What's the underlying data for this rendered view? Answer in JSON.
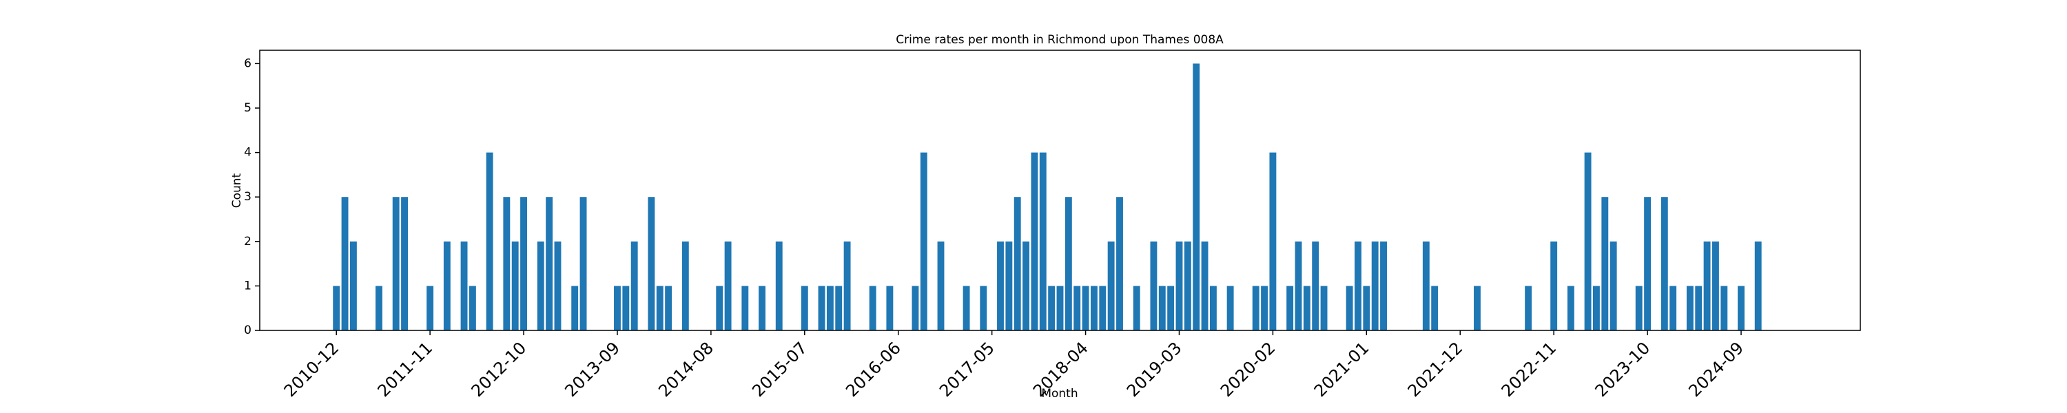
{
  "chart_data": {
    "type": "bar",
    "title": "Crime rates per month in Richmond upon Thames 008A",
    "xlabel": "Month",
    "ylabel": "Count",
    "color": "#1f77b4",
    "x": [
      "2010-12",
      "2011-01",
      "2011-02",
      "2011-05",
      "2011-07",
      "2011-08",
      "2011-11",
      "2012-01",
      "2012-03",
      "2012-04",
      "2012-06",
      "2012-08",
      "2012-09",
      "2012-10",
      "2012-12",
      "2013-01",
      "2013-02",
      "2013-04",
      "2013-05",
      "2013-09",
      "2013-10",
      "2013-11",
      "2014-01",
      "2014-02",
      "2014-03",
      "2014-05",
      "2014-09",
      "2014-10",
      "2014-12",
      "2015-02",
      "2015-04",
      "2015-07",
      "2015-09",
      "2015-10",
      "2015-11",
      "2015-12",
      "2016-03",
      "2016-05",
      "2016-08",
      "2016-09",
      "2016-11",
      "2017-02",
      "2017-04",
      "2017-06",
      "2017-07",
      "2017-08",
      "2017-09",
      "2017-10",
      "2017-11",
      "2017-12",
      "2018-01",
      "2018-02",
      "2018-03",
      "2018-04",
      "2018-05",
      "2018-06",
      "2018-07",
      "2018-08",
      "2018-10",
      "2018-12",
      "2019-01",
      "2019-02",
      "2019-03",
      "2019-04",
      "2019-05",
      "2019-06",
      "2019-07",
      "2019-09",
      "2019-12",
      "2020-01",
      "2020-02",
      "2020-04",
      "2020-05",
      "2020-06",
      "2020-07",
      "2020-08",
      "2020-11",
      "2020-12",
      "2021-01",
      "2021-02",
      "2021-03",
      "2021-08",
      "2021-09",
      "2022-02",
      "2022-08",
      "2022-11",
      "2023-01",
      "2023-03",
      "2023-04",
      "2023-05",
      "2023-06",
      "2023-09",
      "2023-10",
      "2023-12",
      "2024-01",
      "2024-03",
      "2024-04",
      "2024-05",
      "2024-06",
      "2024-07",
      "2024-09",
      "2024-11"
    ],
    "values": [
      1,
      3,
      2,
      1,
      3,
      3,
      1,
      2,
      2,
      1,
      4,
      3,
      2,
      3,
      2,
      3,
      2,
      1,
      3,
      1,
      1,
      2,
      3,
      1,
      1,
      2,
      1,
      2,
      1,
      1,
      2,
      1,
      1,
      1,
      1,
      2,
      1,
      1,
      1,
      4,
      2,
      1,
      1,
      2,
      2,
      3,
      2,
      4,
      4,
      1,
      1,
      3,
      1,
      1,
      1,
      1,
      2,
      3,
      1,
      2,
      1,
      1,
      2,
      2,
      6,
      2,
      1,
      1,
      1,
      1,
      4,
      1,
      2,
      1,
      2,
      1,
      1,
      2,
      1,
      2,
      2,
      2,
      1,
      1,
      1,
      2,
      1,
      4,
      1,
      3,
      2,
      1,
      3,
      3,
      1,
      1,
      1,
      2,
      2,
      1,
      1,
      2
    ],
    "xlim": [
      "2010-03",
      "2025-11"
    ],
    "xticks": [
      "2010-12",
      "2011-11",
      "2012-10",
      "2013-09",
      "2014-08",
      "2015-07",
      "2016-06",
      "2017-05",
      "2018-04",
      "2019-03",
      "2020-02",
      "2021-01",
      "2021-12",
      "2022-11",
      "2023-10",
      "2024-09"
    ],
    "ylim": [
      0,
      6.3
    ],
    "yticks": [
      0,
      1,
      2,
      3,
      4,
      5,
      6
    ]
  }
}
